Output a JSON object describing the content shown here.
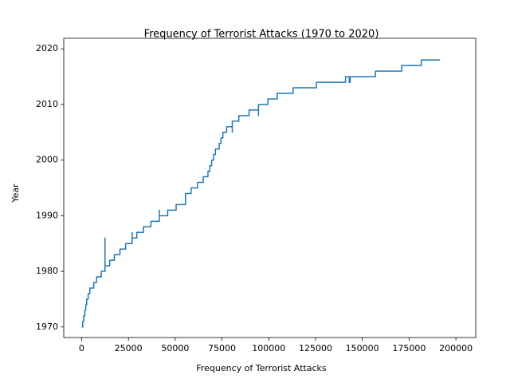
{
  "chart_data": {
    "type": "line",
    "title": "Frequency of Terrorist Attacks (1970 to 2020)",
    "x_label": "Frequency of Terrorist Attacks",
    "y_label": "Year",
    "color": "#1f77b4",
    "x": [
      0,
      600,
      600,
      1100,
      1100,
      1700,
      1700,
      2200,
      2200,
      2700,
      2700,
      3500,
      3500,
      4400,
      4400,
      6500,
      6500,
      8000,
      8000,
      10500,
      10500,
      12500,
      12500,
      12500,
      12500,
      15000,
      15000,
      17500,
      17500,
      20500,
      20500,
      23500,
      23500,
      27000,
      27000,
      27000,
      27000,
      29500,
      29500,
      33000,
      33000,
      37000,
      37000,
      41500,
      41500,
      41500,
      41500,
      46000,
      46000,
      50500,
      50500,
      55500,
      55500,
      58500,
      58500,
      62000,
      62000,
      65000,
      65000,
      67500,
      67500,
      68500,
      68500,
      69500,
      69500,
      70500,
      70500,
      71500,
      71500,
      73500,
      73500,
      74500,
      74500,
      75500,
      75500,
      77500,
      77500,
      80500,
      80500,
      80500,
      80500,
      84000,
      84000,
      89500,
      89500,
      94500,
      94500,
      94500,
      94500,
      99500,
      99500,
      104500,
      104500,
      113000,
      113000,
      125500,
      125500,
      141000,
      141000,
      143000,
      143000,
      143500,
      143500,
      157000,
      157000,
      171000,
      171000,
      181500,
      181500,
      191500
    ],
    "values": [
      1970,
      1970,
      1971,
      1971,
      1972,
      1972,
      1973,
      1973,
      1974,
      1974,
      1975,
      1975,
      1976,
      1976,
      1977,
      1977,
      1978,
      1978,
      1979,
      1979,
      1980,
      1980,
      1986,
      1981,
      1981,
      1981,
      1982,
      1982,
      1983,
      1983,
      1984,
      1984,
      1985,
      1985,
      1987,
      1986,
      1986,
      1986,
      1987,
      1987,
      1988,
      1988,
      1989,
      1989,
      1991,
      1990,
      1990,
      1990,
      1991,
      1991,
      1992,
      1992,
      1994,
      1994,
      1995,
      1995,
      1996,
      1996,
      1997,
      1997,
      1998,
      1998,
      1999,
      1999,
      2000,
      2000,
      2001,
      2001,
      2002,
      2002,
      2003,
      2003,
      2004,
      2004,
      2005,
      2005,
      2006,
      2006,
      2005,
      2007,
      2007,
      2007,
      2008,
      2008,
      2009,
      2009,
      2008,
      2010,
      2010,
      2010,
      2011,
      2011,
      2012,
      2012,
      2013,
      2013,
      2014,
      2014,
      2015,
      2015,
      2014,
      2014,
      2015,
      2015,
      2016,
      2016,
      2017,
      2017,
      2018,
      2018
    ],
    "xlim": [
      -9550,
      210600
    ],
    "ylim": [
      1968.1,
      2021.9
    ],
    "xticks": [
      0,
      25000,
      50000,
      75000,
      100000,
      125000,
      150000,
      175000,
      200000
    ],
    "yticks": [
      1970,
      1980,
      1990,
      2000,
      2010,
      2020
    ]
  }
}
